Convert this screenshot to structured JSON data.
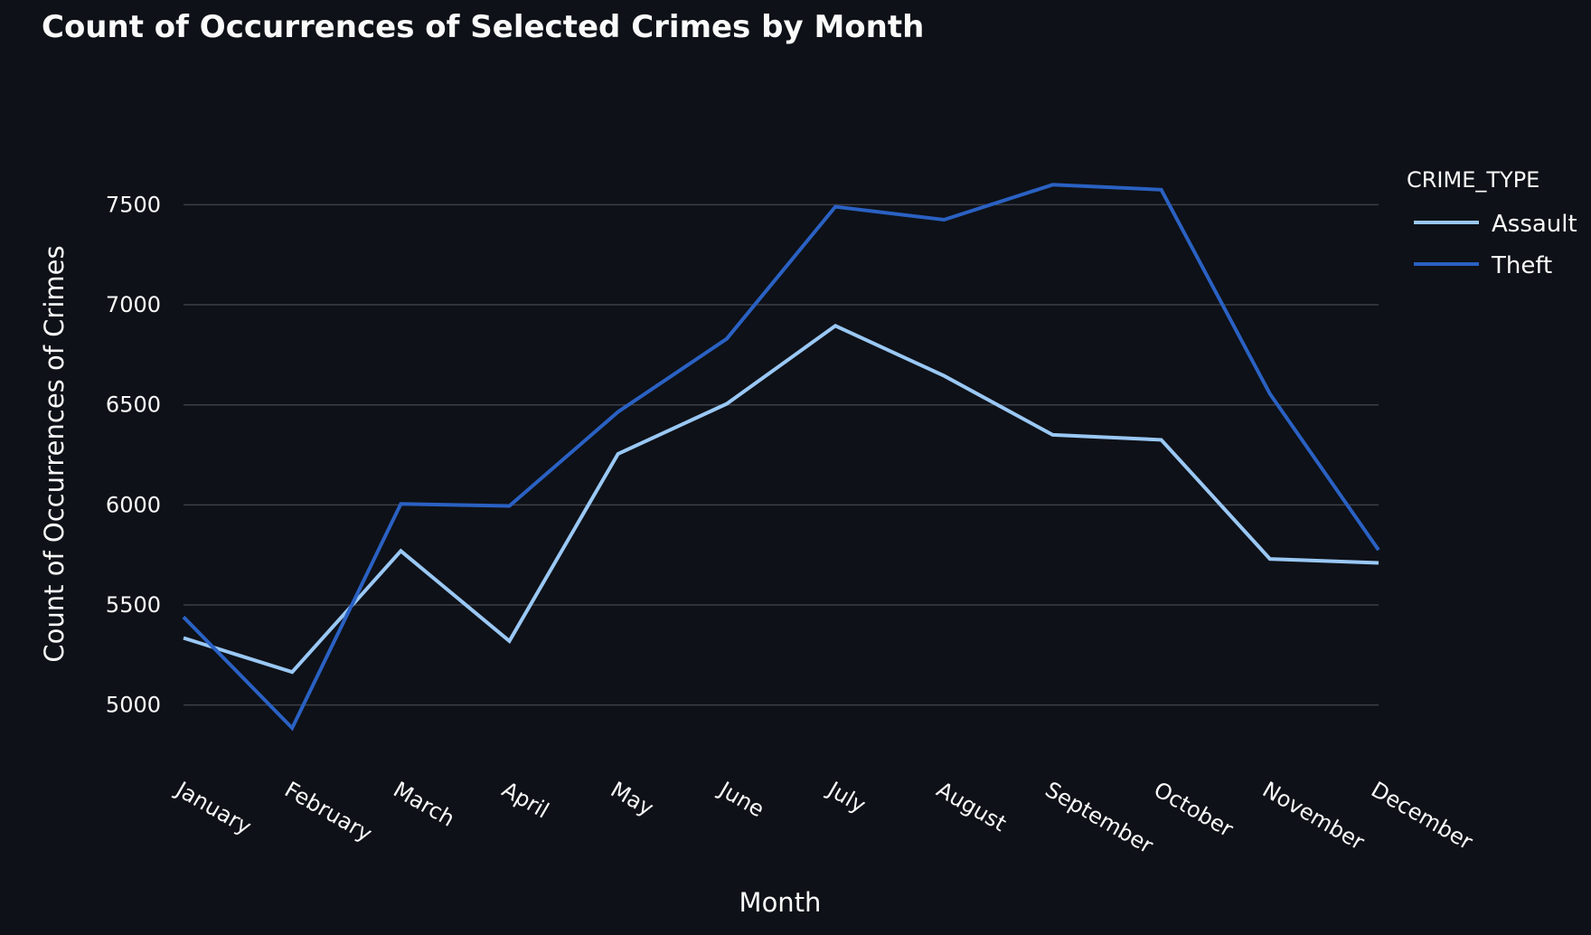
{
  "chart_data": {
    "type": "line",
    "title": "Count of Occurrences of Selected Crimes by Month",
    "xlabel": "Month",
    "ylabel": "Count of Occurrences of Crimes",
    "categories": [
      "January",
      "February",
      "March",
      "April",
      "May",
      "June",
      "July",
      "August",
      "September",
      "October",
      "November",
      "December"
    ],
    "yticks": [
      5000,
      5500,
      6000,
      6500,
      7000,
      7500
    ],
    "ylim": [
      4750,
      7800
    ],
    "grid": true,
    "legend": {
      "title": "CRIME_TYPE",
      "placement": "right-top"
    },
    "series": [
      {
        "name": "Assault",
        "color": "#9ac8f5",
        "values": [
          5335,
          5165,
          5770,
          5320,
          6255,
          6505,
          6895,
          6645,
          6350,
          6325,
          5730,
          5710
        ]
      },
      {
        "name": "Theft",
        "color": "#2a61c3",
        "values": [
          5440,
          4885,
          6005,
          5995,
          6465,
          6830,
          7490,
          7425,
          7600,
          7575,
          6555,
          5775
        ]
      }
    ]
  },
  "colors": {
    "background": "#0e1117",
    "grid": "#3d3f47",
    "text": "#fafafa"
  }
}
